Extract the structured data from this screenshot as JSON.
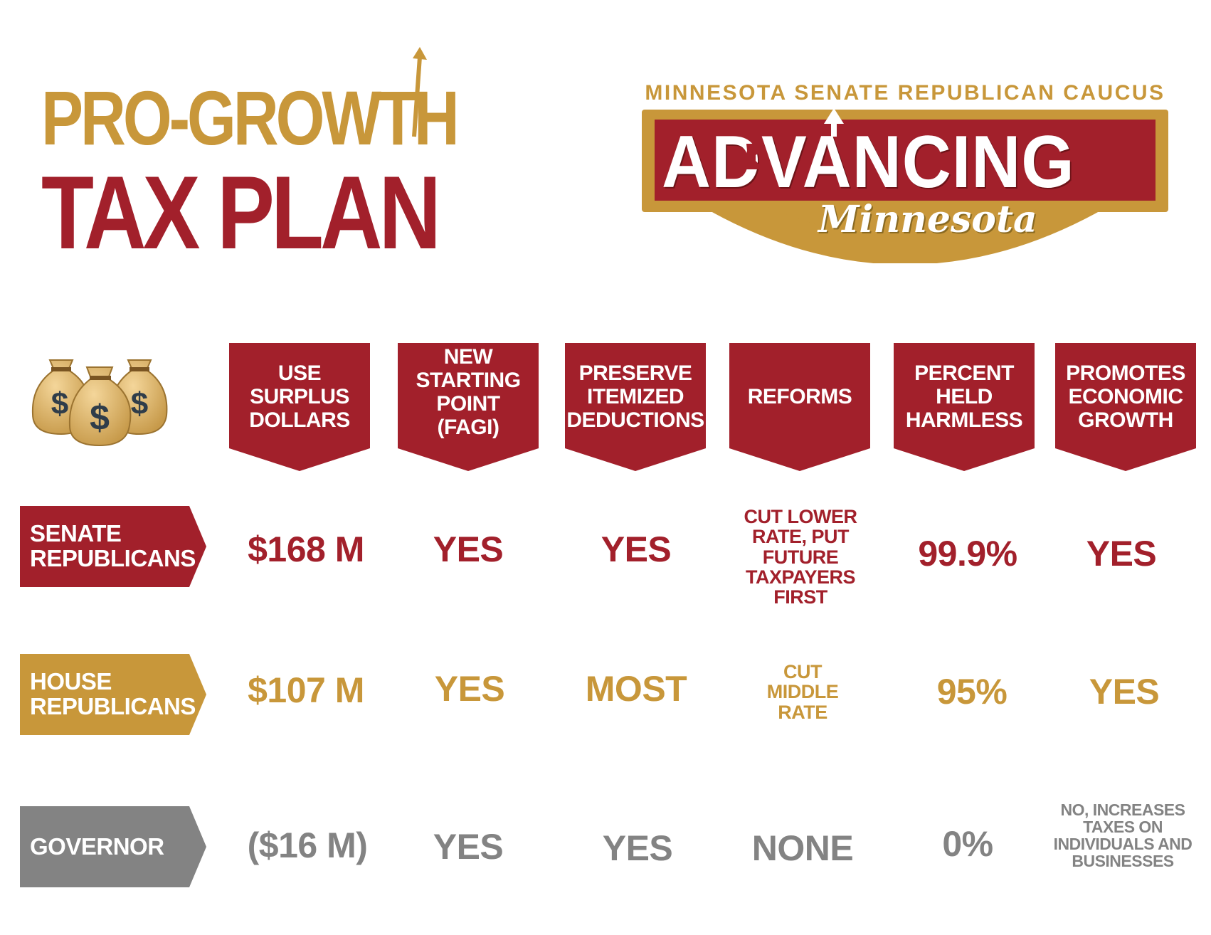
{
  "title": {
    "line1": "PRO-GROWTH",
    "line2": "TAX PLAN"
  },
  "logo": {
    "caucus": "MINNESOTA SENATE REPUBLICAN CAUCUS",
    "advancing": "ADVANCING",
    "script": "Minnesota"
  },
  "icon": "money-bags",
  "colors": {
    "crimson": "#a2202b",
    "gold": "#c8973a",
    "gray": "#838383"
  },
  "columns": [
    [
      "USE",
      "SURPLUS",
      "DOLLARS"
    ],
    [
      "NEW",
      "STARTING",
      "POINT",
      "(FAGI)"
    ],
    [
      "PRESERVE",
      "ITEMIZED",
      "DEDUCTIONS"
    ],
    [
      "REFORMS"
    ],
    [
      "PERCENT",
      "HELD",
      "HARMLESS"
    ],
    [
      "PROMOTES",
      "ECONOMIC",
      "GROWTH"
    ]
  ],
  "rows": [
    {
      "label": [
        "SENATE",
        "REPUBLICANS"
      ],
      "values": [
        "$168 M",
        "YES",
        "YES",
        "CUT LOWER RATE, PUT FUTURE TAXPAYERS FIRST",
        "99.9%",
        "YES"
      ]
    },
    {
      "label": [
        "HOUSE",
        "REPUBLICANS"
      ],
      "values": [
        "$107 M",
        "YES",
        "MOST",
        "CUT MIDDLE RATE",
        "95%",
        "YES"
      ]
    },
    {
      "label": [
        "GOVERNOR"
      ],
      "values": [
        "($16 M)",
        "YES",
        "YES",
        "NONE",
        "0%",
        "NO, INCREASES TAXES ON INDIVIDUALS AND BUSINESSES"
      ]
    }
  ]
}
